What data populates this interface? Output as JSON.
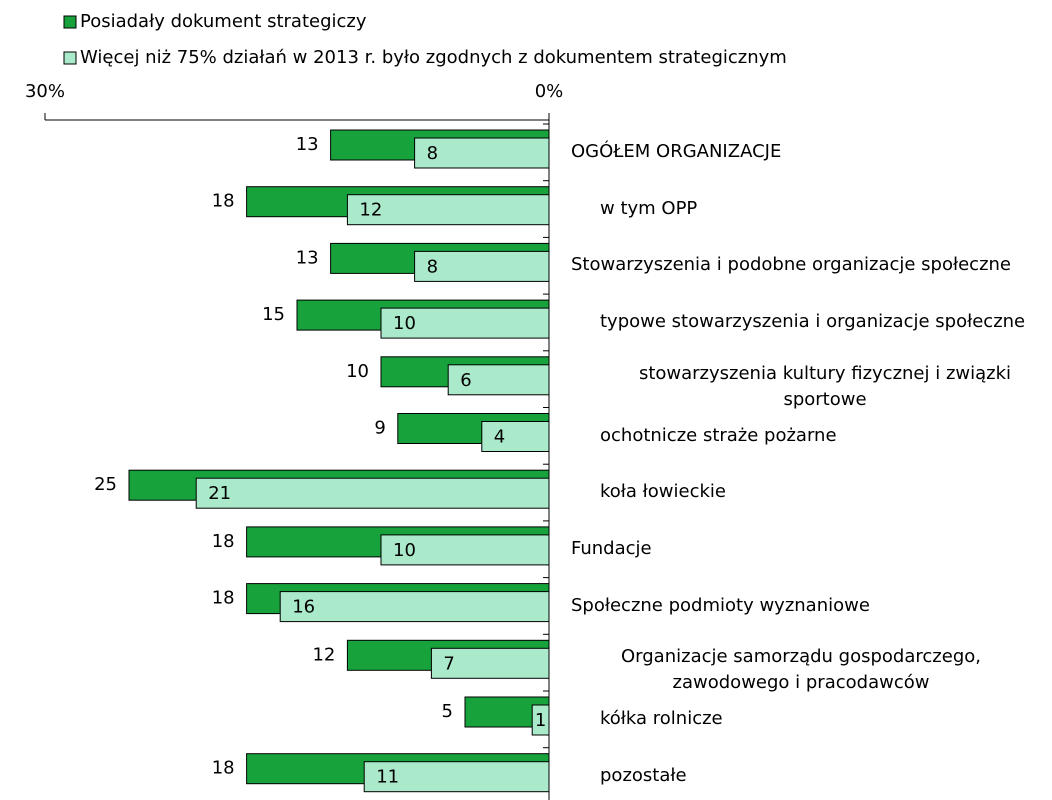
{
  "chart_data": {
    "type": "bar",
    "orientation": "horizontal",
    "categories": [
      "OGÓŁEM ORGANIZACJE",
      "w tym OPP",
      "Stowarzyszenia i podobne organizacje społeczne",
      "typowe stowarzyszenia i organizacje społeczne",
      "stowarzyszenia kultury fizycznej i związki sportowe",
      "ochotnicze straże pożarne",
      "koła łowieckie",
      "Fundacje",
      "Społeczne podmioty wyznaniowe",
      "Organizacje samorządu gospodarczego, zawodowego i pracodawców",
      "kółka rolnicze",
      "pozostałe"
    ],
    "series": [
      {
        "name": "Posiadały dokument strategiczy",
        "color": "#17a23c",
        "values": [
          13,
          18,
          13,
          15,
          10,
          9,
          25,
          18,
          18,
          12,
          5,
          18
        ]
      },
      {
        "name": "Więcej niż 75% działań w 2013 r. było zgodnych z dokumentem strategicznym",
        "color": "#aaeacb",
        "values": [
          8,
          12,
          8,
          10,
          6,
          4,
          21,
          10,
          16,
          7,
          1,
          11
        ]
      }
    ],
    "xlim": [
      30,
      0
    ],
    "xticks": [
      {
        "value": 30,
        "label": "30%"
      },
      {
        "value": 0,
        "label": "0%"
      }
    ],
    "legend": "top-left"
  }
}
